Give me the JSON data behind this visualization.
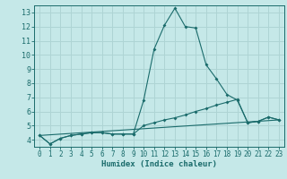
{
  "title": "",
  "xlabel": "Humidex (Indice chaleur)",
  "bg_color": "#c5e8e8",
  "grid_color": "#aed4d4",
  "line_color": "#1a6b6b",
  "spine_color": "#1a6b6b",
  "xlim": [
    -0.5,
    23.5
  ],
  "ylim": [
    3.5,
    13.5
  ],
  "yticks": [
    4,
    5,
    6,
    7,
    8,
    9,
    10,
    11,
    12,
    13
  ],
  "xticks": [
    0,
    1,
    2,
    3,
    4,
    5,
    6,
    7,
    8,
    9,
    10,
    11,
    12,
    13,
    14,
    15,
    16,
    17,
    18,
    19,
    20,
    21,
    22,
    23
  ],
  "line1_x": [
    0,
    1,
    2,
    3,
    4,
    5,
    6,
    7,
    8,
    9,
    10,
    11,
    12,
    13,
    14,
    15,
    16,
    17,
    18,
    19,
    20,
    21,
    22,
    23
  ],
  "line1_y": [
    4.3,
    3.7,
    4.1,
    4.3,
    4.4,
    4.5,
    4.5,
    4.4,
    4.4,
    4.4,
    6.8,
    10.4,
    12.1,
    13.3,
    12.0,
    11.9,
    9.3,
    8.3,
    7.2,
    6.8,
    5.2,
    5.3,
    5.6,
    5.4
  ],
  "line2_x": [
    0,
    1,
    2,
    3,
    4,
    5,
    6,
    7,
    8,
    9,
    10,
    11,
    12,
    13,
    14,
    15,
    16,
    17,
    18,
    19,
    20,
    21,
    22,
    23
  ],
  "line2_y": [
    4.3,
    3.7,
    4.1,
    4.3,
    4.4,
    4.5,
    4.5,
    4.4,
    4.4,
    4.4,
    5.0,
    5.2,
    5.4,
    5.55,
    5.75,
    6.0,
    6.2,
    6.45,
    6.65,
    6.85,
    5.2,
    5.3,
    5.6,
    5.4
  ],
  "line3_x": [
    0,
    23
  ],
  "line3_y": [
    4.3,
    5.4
  ],
  "tick_fontsize": 5.5,
  "xlabel_fontsize": 6.5
}
